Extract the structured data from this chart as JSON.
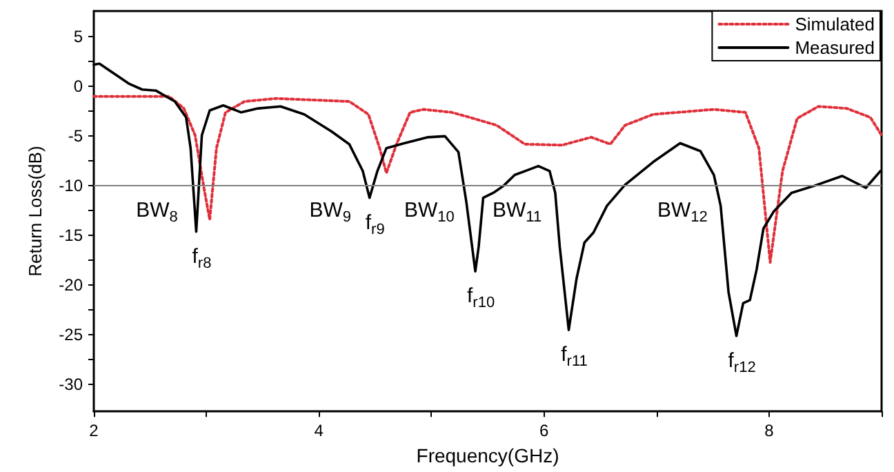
{
  "chart_data": {
    "type": "line",
    "xlabel": "Frequency(GHz)",
    "ylabel": "Return Loss(dB)",
    "xlim": [
      2,
      9
    ],
    "xticks": [
      2,
      {
        "value": 3,
        "label": null
      },
      4,
      {
        "value": 5,
        "label": null
      },
      6,
      {
        "value": 7,
        "label": null
      },
      8,
      {
        "value": 9,
        "label": null
      }
    ],
    "ylim": [
      -32.7,
      7.6
    ],
    "yticks": [
      -30,
      {
        "value": -27.5,
        "label": null
      },
      -25,
      {
        "value": -22.5,
        "label": null
      },
      -20,
      {
        "value": -17.5,
        "label": null
      },
      -15,
      {
        "value": -12.5,
        "label": null
      },
      -10,
      {
        "value": -7.5,
        "label": null
      },
      -5,
      {
        "value": -2.5,
        "label": null
      },
      0,
      {
        "value": 2.5,
        "label": null
      },
      5
    ],
    "grid": false,
    "legend": "top right",
    "marker": "none",
    "series": [
      {
        "name": "Simulated",
        "color": "#e0303a",
        "line_style": "dotted",
        "x": [
          2.0,
          2.67,
          2.8,
          2.9,
          2.98,
          3.03,
          3.09,
          3.17,
          3.34,
          3.62,
          4.27,
          4.44,
          4.54,
          4.6,
          4.69,
          4.81,
          4.93,
          5.18,
          5.34,
          5.58,
          5.83,
          6.16,
          6.42,
          6.59,
          6.72,
          6.97,
          7.51,
          7.79,
          7.91,
          8.01,
          8.12,
          8.25,
          8.44,
          8.69,
          8.9,
          9.0
        ],
        "values": [
          -1.0,
          -1.0,
          -2.2,
          -4.9,
          -10.3,
          -13.4,
          -6.2,
          -2.6,
          -1.5,
          -1.2,
          -1.5,
          -2.8,
          -6.2,
          -8.7,
          -5.8,
          -2.6,
          -2.3,
          -2.6,
          -3.1,
          -3.9,
          -5.8,
          -5.9,
          -5.1,
          -5.8,
          -3.9,
          -2.8,
          -2.3,
          -2.6,
          -6.2,
          -17.7,
          -8.5,
          -3.2,
          -2.0,
          -2.2,
          -3.1,
          -4.9
        ]
      },
      {
        "name": "Measured",
        "color": "#000000",
        "line_style": "solid",
        "x": [
          2.0,
          2.05,
          2.31,
          2.43,
          2.55,
          2.72,
          2.82,
          2.86,
          2.91,
          2.96,
          3.03,
          3.15,
          3.31,
          3.46,
          3.66,
          3.87,
          4.11,
          4.27,
          4.39,
          4.45,
          4.52,
          4.6,
          4.76,
          4.97,
          5.12,
          5.24,
          5.31,
          5.39,
          5.42,
          5.46,
          5.55,
          5.64,
          5.74,
          5.95,
          6.05,
          6.1,
          6.14,
          6.22,
          6.29,
          6.36,
          6.44,
          6.56,
          6.72,
          6.97,
          7.21,
          7.39,
          7.51,
          7.57,
          7.64,
          7.71,
          7.77,
          7.83,
          7.89,
          7.95,
          8.04,
          8.2,
          8.4,
          8.65,
          8.86,
          8.99
        ],
        "values": [
          2.2,
          2.3,
          0.3,
          -0.3,
          -0.4,
          -1.5,
          -3.1,
          -6.2,
          -14.6,
          -4.9,
          -2.4,
          -1.9,
          -2.6,
          -2.2,
          -2.0,
          -2.8,
          -4.5,
          -5.8,
          -8.5,
          -11.2,
          -8.5,
          -6.2,
          -5.7,
          -5.1,
          -5.0,
          -6.6,
          -11.6,
          -18.6,
          -16.1,
          -11.2,
          -10.7,
          -10.0,
          -8.9,
          -8.0,
          -8.5,
          -10.7,
          -16.1,
          -24.5,
          -19.3,
          -15.7,
          -14.7,
          -12.0,
          -9.9,
          -7.6,
          -5.7,
          -6.5,
          -8.9,
          -12.0,
          -20.7,
          -25.1,
          -21.8,
          -21.5,
          -18.4,
          -14.3,
          -12.6,
          -10.7,
          -10.0,
          -9.0,
          -10.2,
          -8.5
        ]
      }
    ],
    "ref_lines": [
      {
        "axis": "y",
        "value": -10,
        "color": "#808080",
        "line_style": "solid"
      }
    ],
    "annotations": [
      {
        "text": "BW$_{8}$",
        "x": 2.88,
        "y": -10
      },
      {
        "text": "f$_{r8}$",
        "x": 2.91,
        "y": -14.6
      },
      {
        "text": "BW$_{9}$",
        "x": 4.42,
        "y": -10
      },
      {
        "text": "f$_{r9}$",
        "x": 4.45,
        "y": -11.2
      },
      {
        "text": "BW$_{10}$",
        "x": 5.3,
        "y": -10
      },
      {
        "text": "f$_{r10}$",
        "x": 5.39,
        "y": -18.6
      },
      {
        "text": "BW$_{11}$",
        "x": 6.08,
        "y": -10
      },
      {
        "text": "f$_{r11}$",
        "x": 6.22,
        "y": -24.5
      },
      {
        "text": "BW$_{12}$",
        "x": 7.55,
        "y": -10
      },
      {
        "text": "f$_{r12}$",
        "x": 7.71,
        "y": -25.1
      }
    ]
  }
}
